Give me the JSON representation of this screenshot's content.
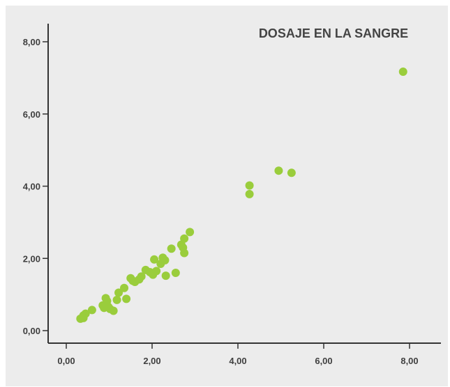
{
  "chart_data": {
    "type": "scatter",
    "title": "DOSAJE EN LA SANGRE",
    "xlabel": "",
    "ylabel": "",
    "xlim": [
      0,
      8.5
    ],
    "ylim": [
      0,
      8.5
    ],
    "grid": false,
    "x_ticks": [
      {
        "value": 0,
        "label": "0,00"
      },
      {
        "value": 2,
        "label": "2,00"
      },
      {
        "value": 4,
        "label": "4,00"
      },
      {
        "value": 6,
        "label": "6,00"
      },
      {
        "value": 8,
        "label": "8,00"
      }
    ],
    "y_ticks": [
      {
        "value": 0,
        "label": "0,00"
      },
      {
        "value": 2,
        "label": "2,00"
      },
      {
        "value": 4,
        "label": "4,00"
      },
      {
        "value": 6,
        "label": "6,00"
      },
      {
        "value": 8,
        "label": "8,00"
      }
    ],
    "point_color": "#9acd3c",
    "axis_color": "#333333",
    "series": [
      {
        "points": [
          [
            0.33,
            0.33
          ],
          [
            0.4,
            0.42
          ],
          [
            0.45,
            0.47
          ],
          [
            0.4,
            0.35
          ],
          [
            0.6,
            0.57
          ],
          [
            0.85,
            0.7
          ],
          [
            0.88,
            0.63
          ],
          [
            0.92,
            0.9
          ],
          [
            0.95,
            0.82
          ],
          [
            0.98,
            0.66
          ],
          [
            1.02,
            0.6
          ],
          [
            1.1,
            0.55
          ],
          [
            1.18,
            0.85
          ],
          [
            1.22,
            1.05
          ],
          [
            1.35,
            1.18
          ],
          [
            1.4,
            0.88
          ],
          [
            1.5,
            1.45
          ],
          [
            1.55,
            1.38
          ],
          [
            1.6,
            1.35
          ],
          [
            1.7,
            1.42
          ],
          [
            1.75,
            1.5
          ],
          [
            1.85,
            1.68
          ],
          [
            1.95,
            1.62
          ],
          [
            2.02,
            1.55
          ],
          [
            2.05,
            1.97
          ],
          [
            2.1,
            1.65
          ],
          [
            2.2,
            1.85
          ],
          [
            2.25,
            2.02
          ],
          [
            2.3,
            1.95
          ],
          [
            2.32,
            1.52
          ],
          [
            2.45,
            2.27
          ],
          [
            2.55,
            1.6
          ],
          [
            2.68,
            2.38
          ],
          [
            2.72,
            2.3
          ],
          [
            2.75,
            2.55
          ],
          [
            2.75,
            2.15
          ],
          [
            2.88,
            2.73
          ],
          [
            4.27,
            4.02
          ],
          [
            4.27,
            3.78
          ],
          [
            4.95,
            4.43
          ],
          [
            5.25,
            4.37
          ],
          [
            7.85,
            7.17
          ]
        ]
      }
    ]
  }
}
